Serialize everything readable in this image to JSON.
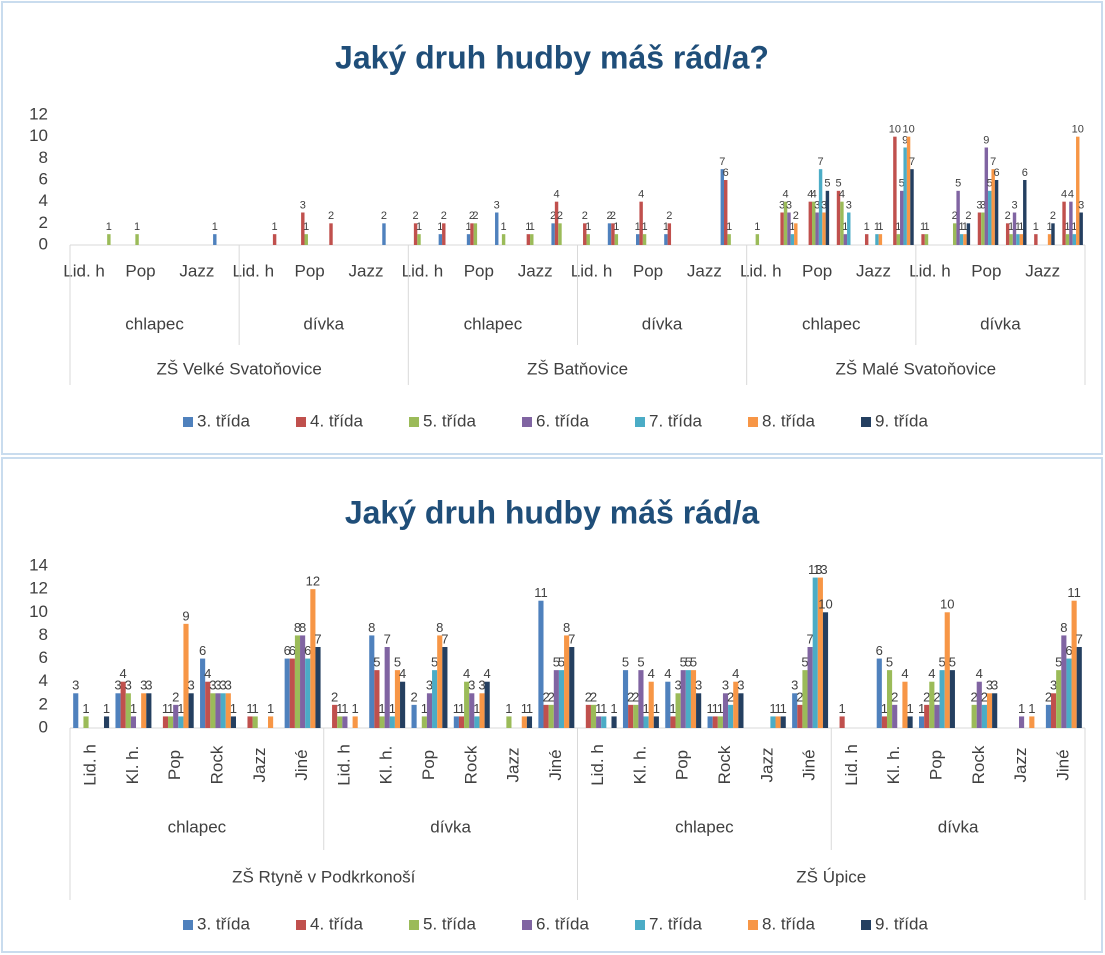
{
  "chart_data": [
    {
      "type": "bar",
      "title": "Jaký druh hudby máš rád/a?",
      "categories": [
        "Lid. h",
        null,
        "Pop",
        null,
        "Jazz",
        null,
        "Lid. h",
        null,
        "Pop",
        null,
        "Jazz",
        null,
        "Lid. h",
        null,
        "Pop",
        null,
        "Jazz",
        null,
        "Lid. h",
        null,
        "Pop",
        null,
        "Jazz",
        null,
        "Lid. h",
        null,
        "Pop",
        null,
        "Jazz",
        null,
        "Lid. h",
        null,
        "Pop",
        null,
        "Jazz",
        null
      ],
      "groups": [
        "chlapec",
        "dívka",
        "chlapec",
        "dívka",
        "chlapec",
        "dívka"
      ],
      "schools": [
        "ZŠ Velké Svatoňovice",
        "ZŠ Batňovice",
        "ZŠ Malé Svatoňovice"
      ],
      "ylim": [
        0,
        12
      ],
      "yticks": [
        0,
        2,
        4,
        6,
        8,
        10,
        12
      ],
      "grid": false,
      "legend": "bottom",
      "series": [
        {
          "name": "3. třída",
          "color": "#4f81bd",
          "values": [
            null,
            null,
            null,
            null,
            null,
            1,
            null,
            null,
            null,
            null,
            null,
            2,
            null,
            1,
            1,
            3,
            null,
            2,
            null,
            2,
            1,
            1,
            null,
            7,
            null,
            null,
            null,
            null,
            null,
            null,
            null,
            null,
            null,
            null,
            null,
            null
          ]
        },
        {
          "name": "4. třída",
          "color": "#c0504d",
          "values": [
            null,
            null,
            null,
            null,
            null,
            null,
            null,
            1,
            3,
            2,
            null,
            null,
            2,
            2,
            2,
            null,
            1,
            4,
            2,
            2,
            4,
            2,
            null,
            6,
            null,
            3,
            4,
            5,
            1,
            10,
            1,
            null,
            3,
            2,
            1,
            4
          ]
        },
        {
          "name": "5. třída",
          "color": "#9bbb59",
          "values": [
            null,
            1,
            1,
            null,
            null,
            null,
            null,
            null,
            1,
            null,
            null,
            null,
            1,
            null,
            2,
            1,
            1,
            2,
            1,
            1,
            1,
            null,
            null,
            1,
            1,
            4,
            4,
            4,
            null,
            1,
            1,
            2,
            3,
            1,
            null,
            1
          ]
        },
        {
          "name": "6. třída",
          "color": "#8064a2",
          "values": [
            null,
            null,
            null,
            null,
            null,
            null,
            null,
            null,
            null,
            null,
            null,
            null,
            null,
            null,
            null,
            null,
            null,
            null,
            null,
            null,
            null,
            null,
            null,
            null,
            null,
            3,
            3,
            1,
            null,
            5,
            null,
            5,
            9,
            3,
            null,
            4
          ]
        },
        {
          "name": "7. třída",
          "color": "#4bacc6",
          "values": [
            null,
            null,
            null,
            null,
            null,
            null,
            null,
            null,
            null,
            null,
            null,
            null,
            null,
            null,
            null,
            null,
            null,
            null,
            null,
            null,
            null,
            null,
            null,
            null,
            null,
            1,
            7,
            3,
            1,
            9,
            null,
            1,
            5,
            1,
            null,
            1
          ]
        },
        {
          "name": "8. třída",
          "color": "#f79646",
          "values": [
            null,
            null,
            null,
            null,
            null,
            null,
            null,
            null,
            null,
            null,
            null,
            null,
            null,
            null,
            null,
            null,
            null,
            null,
            null,
            null,
            null,
            null,
            null,
            null,
            null,
            2,
            3,
            null,
            1,
            10,
            null,
            1,
            7,
            1,
            1,
            10
          ]
        },
        {
          "name": "9. třída",
          "color": "#243f60",
          "values": [
            null,
            null,
            null,
            null,
            null,
            null,
            null,
            null,
            null,
            null,
            null,
            null,
            null,
            null,
            null,
            null,
            null,
            null,
            null,
            null,
            null,
            null,
            null,
            null,
            null,
            null,
            5,
            null,
            null,
            7,
            null,
            2,
            6,
            6,
            2,
            3
          ]
        }
      ]
    },
    {
      "type": "bar",
      "title": "Jaký druh hudby máš rád/a",
      "categories": [
        "Lid. h",
        "Kl. h.",
        "Pop",
        "Rock",
        "Jazz",
        "Jiné",
        "Lid. h",
        "Kl. h.",
        "Pop",
        "Rock",
        "Jazz",
        "Jiné",
        "Lid. h",
        "Kl. h.",
        "Pop",
        "Rock",
        "Jazz",
        "Jiné",
        "Lid. h",
        "Kl. h.",
        "Pop",
        "Rock",
        "Jazz",
        "Jiné"
      ],
      "groups": [
        "chlapec",
        "dívka",
        "chlapec",
        "dívka"
      ],
      "schools": [
        "ZŠ Rtyně v Podkrkonoší",
        "ZŠ Úpice"
      ],
      "ylim": [
        0,
        14
      ],
      "yticks": [
        0,
        2,
        4,
        6,
        8,
        10,
        12,
        14
      ],
      "grid": false,
      "legend": "bottom",
      "series": [
        {
          "name": "3. třída",
          "color": "#4f81bd",
          "values": [
            3,
            3,
            null,
            6,
            null,
            6,
            null,
            8,
            2,
            1,
            null,
            11,
            null,
            5,
            4,
            1,
            null,
            3,
            null,
            6,
            1,
            null,
            null,
            2
          ]
        },
        {
          "name": "4. třída",
          "color": "#c0504d",
          "values": [
            null,
            4,
            1,
            4,
            1,
            6,
            2,
            5,
            null,
            1,
            null,
            2,
            2,
            2,
            1,
            1,
            null,
            2,
            1,
            1,
            2,
            null,
            null,
            3
          ]
        },
        {
          "name": "5. třída",
          "color": "#9bbb59",
          "values": [
            1,
            3,
            1,
            3,
            1,
            8,
            1,
            1,
            1,
            4,
            1,
            2,
            2,
            2,
            3,
            1,
            null,
            5,
            null,
            5,
            4,
            2,
            null,
            5
          ]
        },
        {
          "name": "6. třída",
          "color": "#8064a2",
          "values": [
            null,
            1,
            2,
            3,
            null,
            8,
            1,
            7,
            3,
            3,
            null,
            5,
            1,
            5,
            5,
            3,
            null,
            7,
            null,
            2,
            2,
            4,
            1,
            8
          ]
        },
        {
          "name": "7. třída",
          "color": "#4bacc6",
          "values": [
            null,
            null,
            1,
            3,
            null,
            6,
            null,
            1,
            5,
            1,
            null,
            5,
            1,
            1,
            5,
            2,
            1,
            13,
            null,
            null,
            5,
            2,
            null,
            6
          ]
        },
        {
          "name": "8. třída",
          "color": "#f79646",
          "values": [
            null,
            3,
            9,
            3,
            1,
            12,
            1,
            5,
            8,
            3,
            1,
            8,
            null,
            4,
            5,
            4,
            1,
            13,
            null,
            4,
            10,
            3,
            1,
            11
          ]
        },
        {
          "name": "9. třída",
          "color": "#243f60",
          "values": [
            1,
            3,
            3,
            1,
            null,
            7,
            null,
            4,
            7,
            4,
            1,
            7,
            1,
            1,
            3,
            3,
            1,
            10,
            null,
            1,
            5,
            3,
            null,
            7
          ]
        }
      ]
    }
  ]
}
